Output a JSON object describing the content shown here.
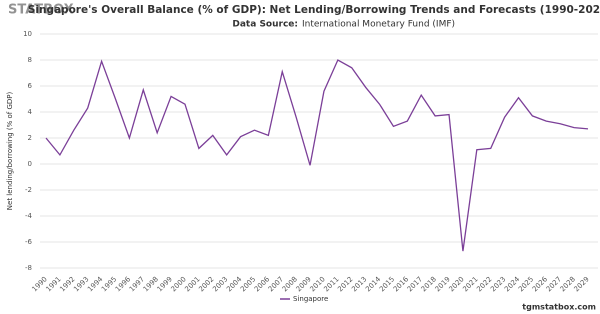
{
  "branding": {
    "logo": "STATBOX",
    "watermark": "tgmstatbox.com"
  },
  "chart_data": {
    "type": "line",
    "title": "Singapore's Overall Balance (% of GDP): Net Lending/Borrowing Trends and Forecasts (1990-2029)",
    "subtitle_label": "Data Source:",
    "subtitle": "International Monetary Fund (IMF)",
    "y_label": "Net lending/borrowing (% of GDP)",
    "categories": [
      "1990",
      "1991",
      "1992",
      "1993",
      "1994",
      "1995",
      "1996",
      "1997",
      "1998",
      "1999",
      "2000",
      "2001",
      "2002",
      "2003",
      "2004",
      "2005",
      "2006",
      "2007",
      "2008",
      "2009",
      "2010",
      "2011",
      "2012",
      "2013",
      "2014",
      "2015",
      "2016",
      "2017",
      "2018",
      "2019",
      "2020",
      "2021",
      "2022",
      "2023",
      "2024",
      "2025",
      "2026",
      "2027",
      "2028",
      "2029"
    ],
    "series": [
      {
        "name": "Singapore",
        "color": "#7b3f98",
        "values": [
          2.0,
          0.7,
          2.6,
          4.3,
          7.9,
          5.0,
          2.0,
          5.7,
          2.4,
          5.2,
          4.6,
          1.2,
          2.2,
          0.7,
          2.1,
          2.6,
          2.2,
          7.1,
          3.6,
          -0.1,
          5.6,
          8.0,
          7.4,
          5.9,
          4.6,
          2.9,
          3.3,
          5.3,
          3.7,
          3.8,
          -6.7,
          1.1,
          1.2,
          3.6,
          5.1,
          3.7,
          3.3,
          3.1,
          2.8,
          2.7
        ]
      }
    ],
    "ylim": [
      -8,
      10
    ],
    "yticks": [
      -8,
      -6,
      -4,
      -2,
      0,
      2,
      4,
      6,
      8,
      10
    ],
    "grid": true,
    "legend": "bottom"
  }
}
